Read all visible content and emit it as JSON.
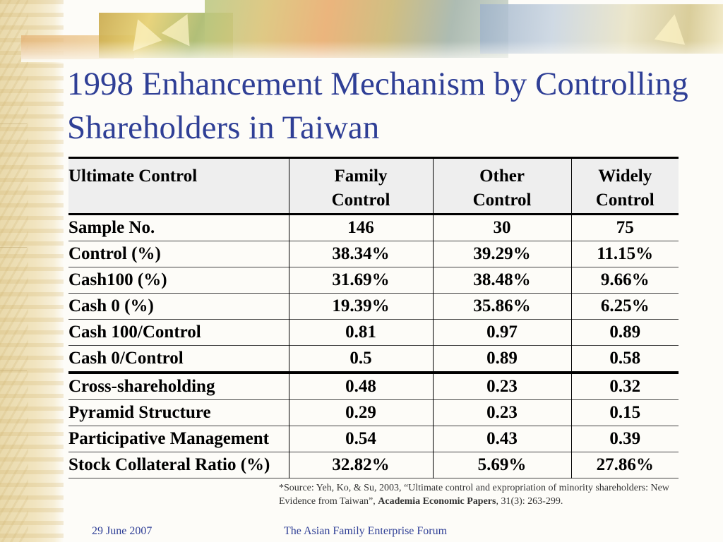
{
  "slide": {
    "title": "1998 Enhancement Mechanism by Controlling Shareholders in Taiwan"
  },
  "table": {
    "headers": [
      {
        "line1": "Ultimate Control",
        "line2": ""
      },
      {
        "line1": "Family",
        "line2": "Control"
      },
      {
        "line1": "Other",
        "line2": "Control"
      },
      {
        "line1": "Widely",
        "line2": "Control"
      }
    ],
    "rows": [
      [
        "Sample No.",
        "146",
        "30",
        "75"
      ],
      [
        "Control (%)",
        "38.34%",
        "39.29%",
        "11.15%"
      ],
      [
        "Cash100 (%)",
        "31.69%",
        "38.48%",
        "9.66%"
      ],
      [
        "Cash 0 (%)",
        "19.39%",
        "35.86%",
        "6.25%"
      ],
      [
        "Cash 100/Control",
        "0.81",
        "0.97",
        "0.89"
      ],
      [
        "Cash 0/Control",
        "0.5",
        "0.89",
        "0.58"
      ],
      [
        "Cross-shareholding",
        "0.48",
        "0.23",
        "0.32"
      ],
      [
        "Pyramid Structure",
        "0.29",
        "0.23",
        "0.15"
      ],
      [
        "Participative Management",
        "0.54",
        "0.43",
        "0.39"
      ],
      [
        "Stock Collateral Ratio (%)",
        "32.82%",
        "5.69%",
        "27.86%"
      ]
    ]
  },
  "source": {
    "prefix": "*Source: Yeh, Ko, & Su, 2003, “Ultimate control and expropriation of minority shareholders: New Evidence from Taiwan”, ",
    "journal": "Academia Economic Papers",
    "suffix": ", 31(3): 263-299."
  },
  "footer": {
    "date": "29 June 2007",
    "forum": "The Asian Family Enterprise Forum"
  },
  "colors": {
    "title": "#2f3f96",
    "header_bg": "#eeeeee"
  }
}
